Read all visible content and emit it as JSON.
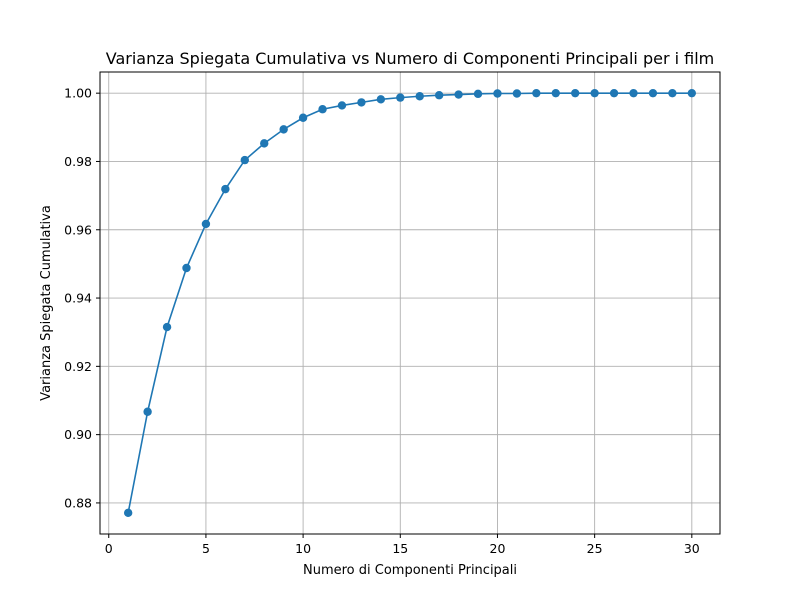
{
  "chart_data": {
    "type": "line",
    "title": "Varianza Spiegata Cumulativa vs Numero di Componenti Principali per i film",
    "xlabel": "Numero di Componenti Principali",
    "ylabel": "Varianza Spiegata Cumulativa",
    "xlim": [
      -0.45,
      31.45
    ],
    "ylim": [
      0.8709,
      1.0062
    ],
    "xticks": [
      0,
      5,
      10,
      15,
      20,
      25,
      30
    ],
    "xtick_labels": [
      "0",
      "5",
      "10",
      "15",
      "20",
      "25",
      "30"
    ],
    "yticks": [
      0.88,
      0.9,
      0.92,
      0.94,
      0.96,
      0.98,
      1.0
    ],
    "ytick_labels": [
      "0.88",
      "0.90",
      "0.92",
      "0.94",
      "0.96",
      "0.98",
      "1.00"
    ],
    "grid": true,
    "marker": "circle",
    "color": "#1f77b4",
    "x": [
      1,
      2,
      3,
      4,
      5,
      6,
      7,
      8,
      9,
      10,
      11,
      12,
      13,
      14,
      15,
      16,
      17,
      18,
      19,
      20,
      21,
      22,
      23,
      24,
      25,
      26,
      27,
      28,
      29,
      30
    ],
    "series": [
      {
        "values": [
          0.8771,
          0.9067,
          0.9315,
          0.9488,
          0.9617,
          0.9719,
          0.9804,
          0.9853,
          0.9894,
          0.9928,
          0.9953,
          0.9964,
          0.9973,
          0.9982,
          0.9987,
          0.9991,
          0.9994,
          0.9996,
          0.9998,
          0.9999,
          0.9999,
          1.0,
          1.0,
          1.0,
          1.0,
          1.0,
          1.0,
          1.0,
          1.0,
          1.0
        ]
      }
    ]
  }
}
